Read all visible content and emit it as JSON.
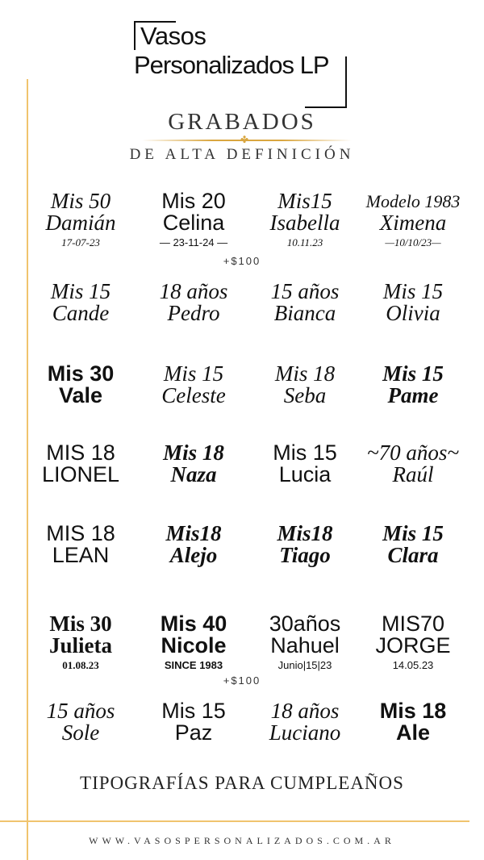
{
  "brand": {
    "line1": "Vasos",
    "line2": "Personalizados LP"
  },
  "header": {
    "title": "GRABADOS",
    "subtitle": "DE ALTA DEFINICIÓN",
    "ornament": "✤"
  },
  "accent_color": "#f0c46e",
  "rows": [
    [
      {
        "line1": "Mis 50",
        "line2": "Damián",
        "line3": "17-07-23",
        "style": "script"
      },
      {
        "line1": "Mis 20",
        "line2": "Celina",
        "line3": "— 23-11-24 —",
        "style": "sans"
      },
      {
        "line1": "Mis15",
        "line2": "Isabella",
        "line3": "10.11.23",
        "style": "script"
      },
      {
        "line1": "Modelo 1983",
        "line2": "Ximena",
        "line3": "—10/10/23—",
        "style": "script"
      }
    ],
    [
      {
        "line1": "Mis 15",
        "line2": "Cande",
        "style": "script"
      },
      {
        "line1": "18 años",
        "line2": "Pedro",
        "style": "script"
      },
      {
        "line1": "15 años",
        "line2": "Bianca",
        "style": "script"
      },
      {
        "line1": "Mis 15",
        "line2": "Olivia",
        "style": "script"
      }
    ],
    [
      {
        "line1": "Mis 30",
        "line2": "Vale",
        "style": "sans-bold"
      },
      {
        "line1": "Mis 15",
        "line2": "Celeste",
        "style": "script"
      },
      {
        "line1": "Mis 18",
        "line2": "Seba",
        "style": "script"
      },
      {
        "line1": "Mis 15",
        "line2": "Pame",
        "style": "script-bold"
      }
    ],
    [
      {
        "line1": "MIS 18",
        "line2": "LIONEL",
        "style": "sans"
      },
      {
        "line1": "Mis 18",
        "line2": "Naza",
        "style": "script-bold"
      },
      {
        "line1": "Mis 15",
        "line2": "Lucia",
        "style": "sans"
      },
      {
        "line1": "~70 años~",
        "line2": "Raúl",
        "style": "script"
      }
    ],
    [
      {
        "line1": "MIS 18",
        "line2": "LEAN",
        "style": "sans"
      },
      {
        "line1": "Mis18",
        "line2": "Alejo",
        "style": "script-bold"
      },
      {
        "line1": "Mis18",
        "line2": "Tiago",
        "style": "script-bold"
      },
      {
        "line1": "Mis 15",
        "line2": "Clara",
        "style": "script-bold"
      }
    ],
    [
      {
        "line1": "Mis 30",
        "line2": "Julieta",
        "line3": "01.08.23",
        "style": "serif-bold"
      },
      {
        "line1": "Mis 40",
        "line2": "Nicole",
        "line3": "SINCE 1983",
        "style": "sans-bold"
      },
      {
        "line1": "30años",
        "line2": "Nahuel",
        "line3": "Junio|15|23",
        "style": "sans"
      },
      {
        "line1": "MIS70",
        "line2": "JORGE",
        "line3": "14.05.23",
        "style": "sans"
      }
    ],
    [
      {
        "line1": "15 años",
        "line2": "Sole",
        "style": "script"
      },
      {
        "line1": "Mis 15",
        "line2": "Paz",
        "style": "sans"
      },
      {
        "line1": "18 años",
        "line2": "Luciano",
        "style": "script"
      },
      {
        "line1": "Mis 18",
        "line2": "Ale",
        "style": "sans-bold"
      }
    ]
  ],
  "price_notes": [
    "+$100",
    "+$100"
  ],
  "footer": {
    "title": "TIPOGRAFÍAS PARA CUMPLEAÑOS",
    "url": "WWW.VASOSPERSONALIZADOS.COM.AR"
  }
}
